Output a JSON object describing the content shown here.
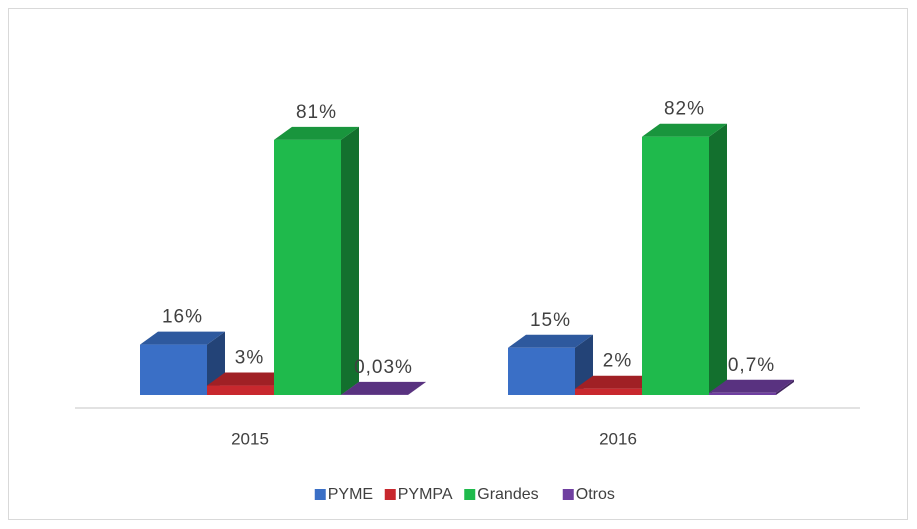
{
  "chart_data": {
    "type": "bar3d",
    "categories": [
      "2015",
      "2016"
    ],
    "series": [
      {
        "name": "PYME",
        "color": "#3a6fc6",
        "values": [
          16,
          15
        ],
        "value_labels": [
          "16%",
          "15%"
        ]
      },
      {
        "name": "PYMPA",
        "color": "#c8282e",
        "values": [
          3,
          2
        ],
        "value_labels": [
          "3%",
          "2%"
        ]
      },
      {
        "name": "Grandes",
        "color": "#1fba4c",
        "values": [
          81,
          82
        ],
        "value_labels": [
          "81%",
          "82%"
        ]
      },
      {
        "name": "Otros",
        "color": "#6f3fa0",
        "values": [
          0.03,
          0.7
        ],
        "value_labels": [
          "0,03%",
          "0,7%"
        ]
      }
    ],
    "legend": "bottom"
  }
}
